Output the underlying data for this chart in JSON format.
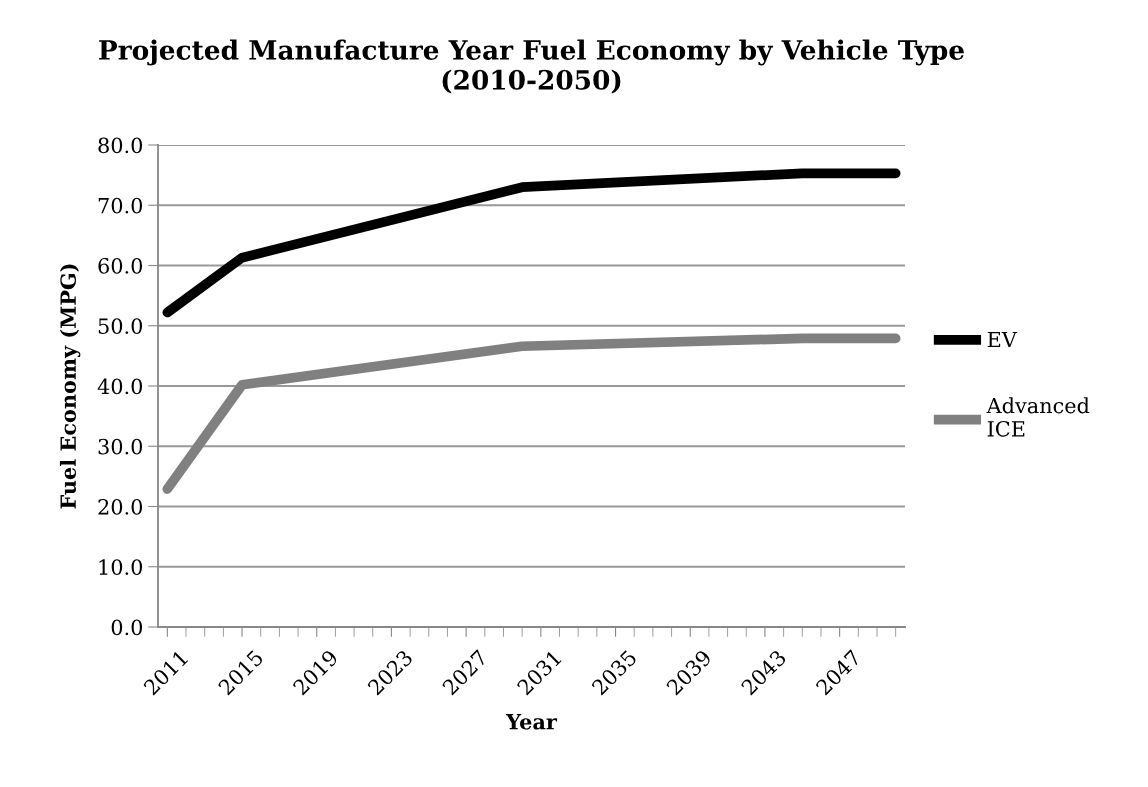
{
  "chart_data": {
    "type": "line",
    "title": "Projected Manufacture Year Fuel Economy by Vehicle Type\n(2010-2050)",
    "xlabel": "Year",
    "ylabel": "Fuel Economy (MPG)",
    "series": [
      {
        "name": "EV",
        "color": "#000000",
        "x": [
          2011,
          2015,
          2030,
          2045,
          2050
        ],
        "values": [
          52.2,
          61.3,
          73.0,
          75.3,
          75.3
        ]
      },
      {
        "name": "Advanced ICE",
        "color": "#808080",
        "x": [
          2011,
          2015,
          2030,
          2045,
          2050
        ],
        "values": [
          22.9,
          40.2,
          46.6,
          47.9,
          47.9
        ]
      }
    ],
    "xlim": [
      2010.5,
      2050.5
    ],
    "xticks": [
      {
        "value": 2011,
        "label": "2011"
      },
      {
        "value": 2015,
        "label": "2015"
      },
      {
        "value": 2019,
        "label": "2019"
      },
      {
        "value": 2023,
        "label": "2023"
      },
      {
        "value": 2027,
        "label": "2027"
      },
      {
        "value": 2031,
        "label": "2031"
      },
      {
        "value": 2035,
        "label": "2035"
      },
      {
        "value": 2039,
        "label": "2039"
      },
      {
        "value": 2043,
        "label": "2043"
      },
      {
        "value": 2047,
        "label": "2047"
      },
      {
        "value": 2012,
        "label": null
      },
      {
        "value": 2013,
        "label": null
      },
      {
        "value": 2014,
        "label": null
      },
      {
        "value": 2016,
        "label": null
      },
      {
        "value": 2017,
        "label": null
      },
      {
        "value": 2018,
        "label": null
      },
      {
        "value": 2020,
        "label": null
      },
      {
        "value": 2021,
        "label": null
      },
      {
        "value": 2022,
        "label": null
      },
      {
        "value": 2024,
        "label": null
      },
      {
        "value": 2025,
        "label": null
      },
      {
        "value": 2026,
        "label": null
      },
      {
        "value": 2028,
        "label": null
      },
      {
        "value": 2029,
        "label": null
      },
      {
        "value": 2030,
        "label": null
      },
      {
        "value": 2032,
        "label": null
      },
      {
        "value": 2033,
        "label": null
      },
      {
        "value": 2034,
        "label": null
      },
      {
        "value": 2036,
        "label": null
      },
      {
        "value": 2037,
        "label": null
      },
      {
        "value": 2038,
        "label": null
      },
      {
        "value": 2040,
        "label": null
      },
      {
        "value": 2041,
        "label": null
      },
      {
        "value": 2042,
        "label": null
      },
      {
        "value": 2044,
        "label": null
      },
      {
        "value": 2045,
        "label": null
      },
      {
        "value": 2046,
        "label": null
      },
      {
        "value": 2048,
        "label": null
      },
      {
        "value": 2049,
        "label": null
      },
      {
        "value": 2050,
        "label": null
      }
    ],
    "ylim": [
      0,
      80
    ],
    "yticks": [
      {
        "value": 0,
        "label": "0.0"
      },
      {
        "value": 10,
        "label": "10.0"
      },
      {
        "value": 20,
        "label": "20.0"
      },
      {
        "value": 30,
        "label": "30.0"
      },
      {
        "value": 40,
        "label": "40.0"
      },
      {
        "value": 50,
        "label": "50.0"
      },
      {
        "value": 60,
        "label": "60.0"
      },
      {
        "value": 70,
        "label": "70.0"
      },
      {
        "value": 80,
        "label": "80.0"
      }
    ],
    "grid": "y",
    "legend": "right",
    "marker": "none",
    "line_style": "solid"
  }
}
